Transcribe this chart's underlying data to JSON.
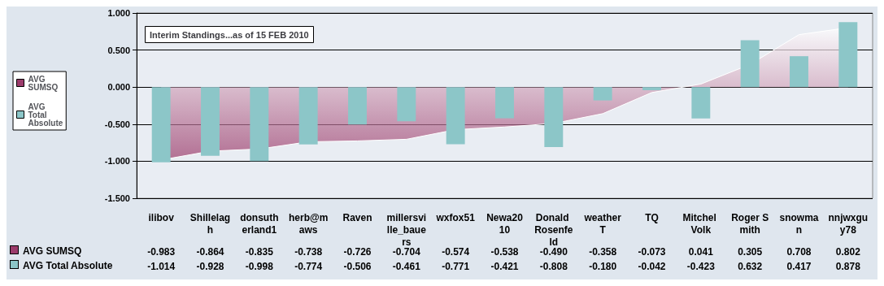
{
  "chart_data": {
    "type": "bar",
    "title": "Interim Standings...as of 15 FEB 2010",
    "categories": [
      "ilibov",
      "Shillelagh",
      "donsutherland1",
      "herb@maws",
      "Raven",
      "millersville_bauers",
      "wxfox51",
      "Newa2010",
      "Donald Rosenfeld",
      "weatherT",
      "TQ",
      "Mitchel Volk",
      "Roger Smith",
      "snowman",
      "nnjwxguy78"
    ],
    "series": [
      {
        "name": "AVG SUMSQ",
        "type": "area",
        "color": "#9b3b6b",
        "values": [
          -0.983,
          -0.864,
          -0.835,
          -0.738,
          -0.726,
          -0.704,
          -0.574,
          -0.538,
          -0.49,
          -0.358,
          -0.073,
          0.041,
          0.305,
          0.708,
          0.802
        ],
        "value_labels": [
          "-0.983",
          "-0.864",
          "-0.835",
          "-0.738",
          "-0.726",
          "-0.704",
          "-0.574",
          "-0.538",
          "-0.490",
          "-0.358",
          "-0.073",
          "0.041",
          "0.305",
          "0.708",
          "0.802"
        ]
      },
      {
        "name": "AVG Total Absolute",
        "type": "bar",
        "color": "#8cc6c8",
        "values": [
          -1.014,
          -0.928,
          -0.998,
          -0.774,
          -0.506,
          -0.461,
          -0.771,
          -0.421,
          -0.808,
          -0.18,
          -0.042,
          -0.423,
          0.632,
          0.417,
          0.878
        ],
        "value_labels": [
          "-1.014",
          "-0.928",
          "-0.998",
          "-0.774",
          "-0.506",
          "-0.461",
          "-0.771",
          "-0.421",
          "-0.808",
          "-0.180",
          "-0.042",
          "-0.423",
          "0.632",
          "0.417",
          "0.878"
        ]
      }
    ],
    "ylim": [
      -1.5,
      1
    ],
    "yticks": [
      {
        "value": -1.5,
        "label": "-1.500"
      },
      {
        "value": -1,
        "label": "-1.000"
      },
      {
        "value": -0.5,
        "label": "-0.500"
      },
      {
        "value": 0,
        "label": "0.000"
      },
      {
        "value": 0.5,
        "label": "0.500"
      },
      {
        "value": 1,
        "label": "1.000"
      }
    ],
    "grid": "y",
    "legend": "left"
  }
}
